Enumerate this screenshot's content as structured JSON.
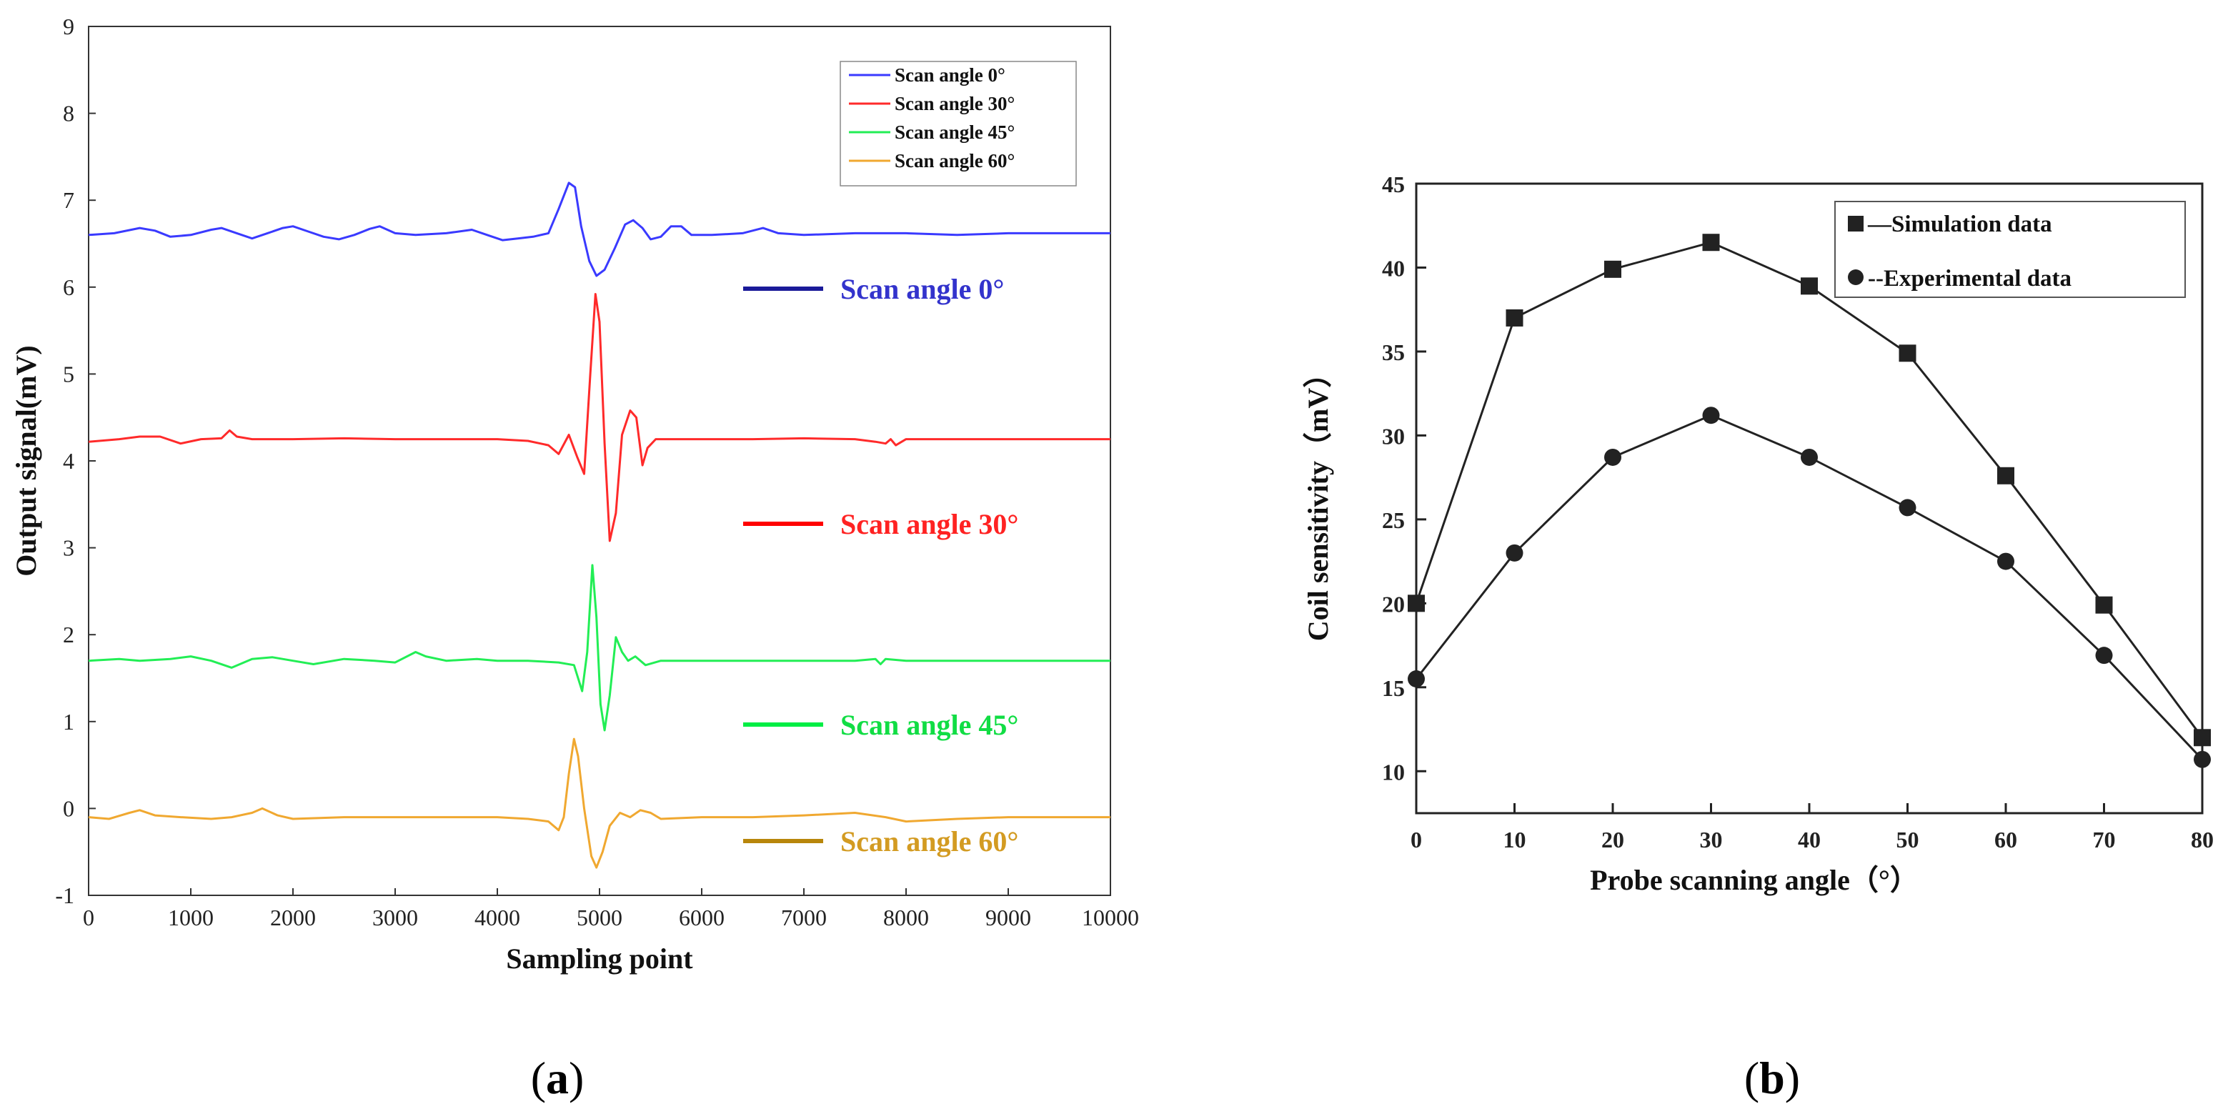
{
  "chart_data": [
    {
      "type": "line",
      "panel_label": "a",
      "title": "",
      "xlabel": "Sampling point",
      "ylabel": "Output signal(mV)",
      "xlim": [
        0,
        10000
      ],
      "ylim": [
        -1,
        9
      ],
      "xticks": [
        0,
        1000,
        2000,
        3000,
        4000,
        5000,
        6000,
        7000,
        8000,
        9000,
        10000
      ],
      "yticks": [
        -1,
        0,
        1,
        2,
        3,
        4,
        5,
        6,
        7,
        8,
        9
      ],
      "legend_placement": "top-right",
      "series": [
        {
          "name": "Scan angle 0°",
          "label": "Scan angle 0°",
          "color": "#3a3aff",
          "label_color": "#3333cc",
          "label_sample": "#1a1a99",
          "points": [
            [
              0,
              6.6
            ],
            [
              250,
              6.62
            ],
            [
              500,
              6.68
            ],
            [
              650,
              6.65
            ],
            [
              800,
              6.58
            ],
            [
              1000,
              6.6
            ],
            [
              1200,
              6.66
            ],
            [
              1300,
              6.68
            ],
            [
              1450,
              6.62
            ],
            [
              1600,
              6.56
            ],
            [
              1750,
              6.62
            ],
            [
              1900,
              6.68
            ],
            [
              2000,
              6.7
            ],
            [
              2150,
              6.64
            ],
            [
              2300,
              6.58
            ],
            [
              2450,
              6.55
            ],
            [
              2600,
              6.6
            ],
            [
              2750,
              6.67
            ],
            [
              2850,
              6.7
            ],
            [
              3000,
              6.62
            ],
            [
              3200,
              6.6
            ],
            [
              3500,
              6.62
            ],
            [
              3750,
              6.66
            ],
            [
              3900,
              6.6
            ],
            [
              4050,
              6.54
            ],
            [
              4200,
              6.56
            ],
            [
              4350,
              6.58
            ],
            [
              4500,
              6.62
            ],
            [
              4600,
              6.9
            ],
            [
              4700,
              7.2
            ],
            [
              4760,
              7.15
            ],
            [
              4820,
              6.7
            ],
            [
              4900,
              6.3
            ],
            [
              4970,
              6.13
            ],
            [
              5050,
              6.2
            ],
            [
              5150,
              6.45
            ],
            [
              5250,
              6.72
            ],
            [
              5330,
              6.77
            ],
            [
              5420,
              6.68
            ],
            [
              5500,
              6.55
            ],
            [
              5600,
              6.58
            ],
            [
              5700,
              6.7
            ],
            [
              5800,
              6.7
            ],
            [
              5900,
              6.6
            ],
            [
              6100,
              6.6
            ],
            [
              6400,
              6.62
            ],
            [
              6600,
              6.68
            ],
            [
              6750,
              6.62
            ],
            [
              7000,
              6.6
            ],
            [
              7500,
              6.62
            ],
            [
              8000,
              6.62
            ],
            [
              8500,
              6.6
            ],
            [
              9000,
              6.62
            ],
            [
              9500,
              6.62
            ],
            [
              10000,
              6.62
            ]
          ]
        },
        {
          "name": "Scan angle 30°",
          "label": "Scan angle 30°",
          "color": "#ff2a2a",
          "label_color": "#ff2222",
          "label_sample": "#ff0000",
          "points": [
            [
              0,
              4.22
            ],
            [
              300,
              4.25
            ],
            [
              500,
              4.28
            ],
            [
              700,
              4.28
            ],
            [
              900,
              4.2
            ],
            [
              1100,
              4.25
            ],
            [
              1300,
              4.26
            ],
            [
              1380,
              4.35
            ],
            [
              1450,
              4.28
            ],
            [
              1600,
              4.25
            ],
            [
              2000,
              4.25
            ],
            [
              2500,
              4.26
            ],
            [
              3000,
              4.25
            ],
            [
              3500,
              4.25
            ],
            [
              4000,
              4.25
            ],
            [
              4300,
              4.23
            ],
            [
              4500,
              4.18
            ],
            [
              4600,
              4.08
            ],
            [
              4700,
              4.3
            ],
            [
              4780,
              4.05
            ],
            [
              4850,
              3.85
            ],
            [
              4910,
              5.0
            ],
            [
              4960,
              5.92
            ],
            [
              5000,
              5.6
            ],
            [
              5050,
              4.2
            ],
            [
              5100,
              3.08
            ],
            [
              5160,
              3.4
            ],
            [
              5220,
              4.3
            ],
            [
              5300,
              4.58
            ],
            [
              5360,
              4.5
            ],
            [
              5420,
              3.95
            ],
            [
              5470,
              4.15
            ],
            [
              5550,
              4.25
            ],
            [
              6000,
              4.25
            ],
            [
              6500,
              4.25
            ],
            [
              7000,
              4.26
            ],
            [
              7500,
              4.25
            ],
            [
              7700,
              4.22
            ],
            [
              7800,
              4.2
            ],
            [
              7850,
              4.25
            ],
            [
              7900,
              4.18
            ],
            [
              8000,
              4.25
            ],
            [
              8500,
              4.25
            ],
            [
              9000,
              4.25
            ],
            [
              9500,
              4.25
            ],
            [
              10000,
              4.25
            ]
          ]
        },
        {
          "name": "Scan angle 45°",
          "label": "Scan angle 45°",
          "color": "#22ee55",
          "label_color": "#11dd44",
          "label_sample": "#00ee44",
          "points": [
            [
              0,
              1.7
            ],
            [
              300,
              1.72
            ],
            [
              500,
              1.7
            ],
            [
              800,
              1.72
            ],
            [
              1000,
              1.75
            ],
            [
              1200,
              1.7
            ],
            [
              1400,
              1.62
            ],
            [
              1600,
              1.72
            ],
            [
              1800,
              1.74
            ],
            [
              2000,
              1.7
            ],
            [
              2200,
              1.66
            ],
            [
              2500,
              1.72
            ],
            [
              2800,
              1.7
            ],
            [
              3000,
              1.68
            ],
            [
              3200,
              1.8
            ],
            [
              3300,
              1.75
            ],
            [
              3500,
              1.7
            ],
            [
              3800,
              1.72
            ],
            [
              4000,
              1.7
            ],
            [
              4300,
              1.7
            ],
            [
              4600,
              1.68
            ],
            [
              4750,
              1.65
            ],
            [
              4830,
              1.35
            ],
            [
              4880,
              1.8
            ],
            [
              4930,
              2.8
            ],
            [
              4970,
              2.2
            ],
            [
              5010,
              1.2
            ],
            [
              5050,
              0.9
            ],
            [
              5100,
              1.3
            ],
            [
              5160,
              1.97
            ],
            [
              5220,
              1.8
            ],
            [
              5280,
              1.7
            ],
            [
              5350,
              1.75
            ],
            [
              5450,
              1.65
            ],
            [
              5600,
              1.7
            ],
            [
              6000,
              1.7
            ],
            [
              6500,
              1.7
            ],
            [
              7000,
              1.7
            ],
            [
              7500,
              1.7
            ],
            [
              7700,
              1.72
            ],
            [
              7750,
              1.66
            ],
            [
              7800,
              1.72
            ],
            [
              8000,
              1.7
            ],
            [
              8500,
              1.7
            ],
            [
              9000,
              1.7
            ],
            [
              9500,
              1.7
            ],
            [
              10000,
              1.7
            ]
          ]
        },
        {
          "name": "Scan angle 60°",
          "label": "Scan angle 60°",
          "color": "#f0a830",
          "label_color": "#d39b22",
          "label_sample": "#b8860b",
          "points": [
            [
              0,
              -0.1
            ],
            [
              200,
              -0.12
            ],
            [
              400,
              -0.05
            ],
            [
              500,
              -0.02
            ],
            [
              650,
              -0.08
            ],
            [
              900,
              -0.1
            ],
            [
              1200,
              -0.12
            ],
            [
              1400,
              -0.1
            ],
            [
              1600,
              -0.05
            ],
            [
              1700,
              0
            ],
            [
              1850,
              -0.08
            ],
            [
              2000,
              -0.12
            ],
            [
              2500,
              -0.1
            ],
            [
              3000,
              -0.1
            ],
            [
              3500,
              -0.1
            ],
            [
              4000,
              -0.1
            ],
            [
              4300,
              -0.12
            ],
            [
              4500,
              -0.15
            ],
            [
              4600,
              -0.25
            ],
            [
              4650,
              -0.1
            ],
            [
              4700,
              0.4
            ],
            [
              4750,
              0.8
            ],
            [
              4790,
              0.6
            ],
            [
              4850,
              0
            ],
            [
              4920,
              -0.55
            ],
            [
              4970,
              -0.68
            ],
            [
              5030,
              -0.5
            ],
            [
              5100,
              -0.2
            ],
            [
              5200,
              -0.05
            ],
            [
              5300,
              -0.1
            ],
            [
              5400,
              -0.02
            ],
            [
              5500,
              -0.05
            ],
            [
              5600,
              -0.12
            ],
            [
              6000,
              -0.1
            ],
            [
              6500,
              -0.1
            ],
            [
              7000,
              -0.08
            ],
            [
              7500,
              -0.05
            ],
            [
              7800,
              -0.1
            ],
            [
              8000,
              -0.15
            ],
            [
              8500,
              -0.12
            ],
            [
              9000,
              -0.1
            ],
            [
              9500,
              -0.1
            ],
            [
              10000,
              -0.1
            ]
          ]
        }
      ]
    },
    {
      "type": "line",
      "panel_label": "b",
      "title": "",
      "xlabel": "Probe scanning angle（°）",
      "ylabel": "Coil sensitivity（mV）",
      "xlim": [
        0,
        80
      ],
      "ylim": [
        7.5,
        45
      ],
      "xticks": [
        0,
        10,
        20,
        30,
        40,
        50,
        60,
        70,
        80
      ],
      "yticks": [
        10,
        15,
        20,
        25,
        30,
        35,
        40,
        45
      ],
      "legend_placement": "top-right",
      "series": [
        {
          "name": "Simulation data",
          "legend_label": "—Simulation data",
          "marker": "square",
          "color": "#222222",
          "x": [
            0,
            10,
            20,
            30,
            40,
            50,
            60,
            70,
            80
          ],
          "y": [
            20,
            37,
            39.9,
            41.5,
            38.9,
            34.9,
            27.6,
            19.9,
            12
          ]
        },
        {
          "name": "Experimental data",
          "legend_label": "--Experimental data",
          "marker": "circle",
          "color": "#222222",
          "x": [
            0,
            10,
            20,
            30,
            40,
            50,
            60,
            70,
            80
          ],
          "y": [
            15.5,
            23,
            28.7,
            31.2,
            28.7,
            25.7,
            22.5,
            16.9,
            10.7
          ]
        }
      ]
    }
  ],
  "captions": [
    {
      "open": "(",
      "letter": "a",
      "close": ")"
    },
    {
      "open": "(",
      "letter": "b",
      "close": ")"
    }
  ]
}
